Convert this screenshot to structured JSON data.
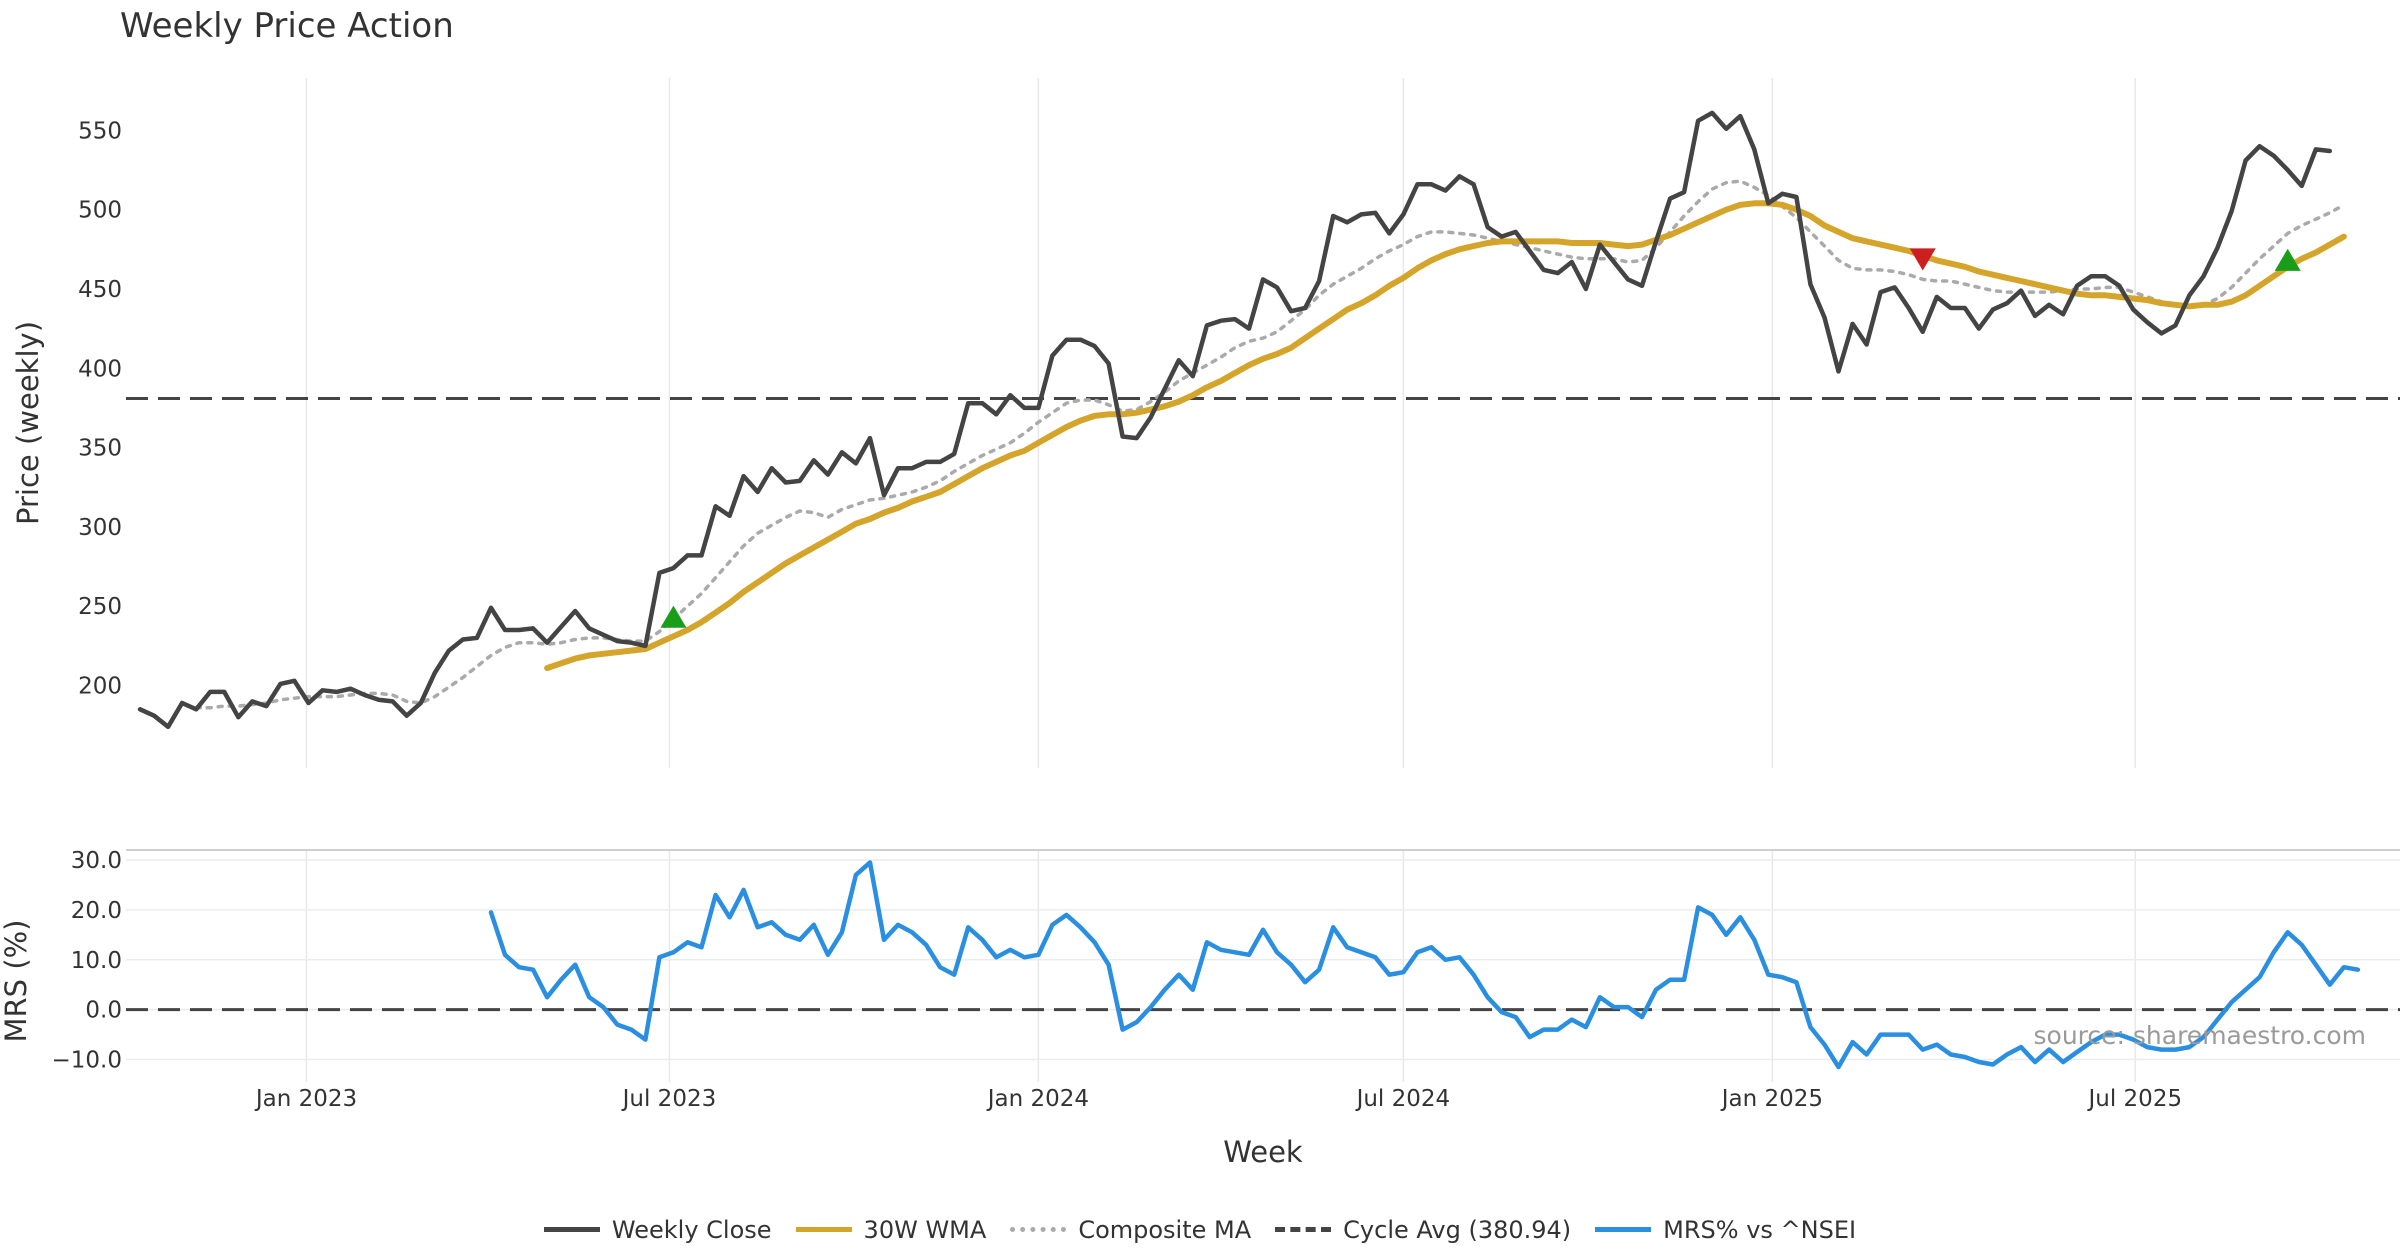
{
  "chart_data": [
    {
      "type": "line",
      "title": "Weekly Price Action",
      "ylabel": "Price (weekly)",
      "ylim": [
        148,
        583
      ],
      "yticks": [
        200,
        250,
        300,
        350,
        400,
        450,
        500,
        550
      ],
      "xlim": [
        "2022-10-03",
        "2025-11-10"
      ],
      "x_start": "2022-10-10",
      "series": [
        {
          "name": "Weekly Close",
          "color": "#444444",
          "style": "solid",
          "values": [
            185,
            181,
            174,
            189,
            185,
            196,
            196,
            180,
            190,
            187,
            201,
            203,
            189,
            197,
            196,
            198,
            194,
            191,
            190,
            181,
            189,
            208,
            222,
            229,
            230,
            249,
            235,
            235,
            236,
            227,
            237,
            247,
            236,
            232,
            228,
            227,
            225,
            271,
            274,
            282,
            282,
            313,
            307,
            332,
            322,
            337,
            328,
            329,
            342,
            333,
            347,
            340,
            356,
            320,
            337,
            337,
            341,
            341,
            346,
            378,
            378,
            371,
            383,
            375,
            375,
            408,
            418,
            418,
            414,
            403,
            357,
            356,
            369,
            387,
            405,
            395,
            427,
            430,
            431,
            425,
            456,
            451,
            436,
            438,
            455,
            496,
            492,
            497,
            498,
            485,
            497,
            516,
            516,
            512,
            521,
            516,
            489,
            483,
            486,
            474,
            462,
            460,
            467,
            450,
            478,
            467,
            456,
            452,
            480,
            507,
            511,
            556,
            561,
            551,
            559,
            538,
            504,
            510,
            508,
            453,
            432,
            398,
            428,
            415,
            448,
            451,
            438,
            423,
            445,
            438,
            438,
            425,
            437,
            441,
            449,
            433,
            440,
            434,
            452,
            458,
            458,
            452,
            437,
            429,
            422,
            427,
            446,
            458,
            476,
            499,
            531,
            540,
            534,
            525,
            515,
            538,
            537
          ]
        },
        {
          "name": "30W WMA",
          "color": "#d4a52a",
          "style": "solid",
          "values": [
            null,
            null,
            null,
            null,
            null,
            null,
            null,
            null,
            null,
            null,
            null,
            null,
            null,
            null,
            null,
            null,
            null,
            null,
            null,
            null,
            null,
            null,
            null,
            null,
            null,
            null,
            null,
            null,
            null,
            211,
            214,
            217,
            219,
            220,
            221,
            222,
            223,
            227,
            231,
            235,
            240,
            246,
            252,
            259,
            265,
            271,
            277,
            282,
            287,
            292,
            297,
            302,
            305,
            309,
            312,
            316,
            319,
            322,
            327,
            332,
            337,
            341,
            345,
            348,
            353,
            358,
            363,
            367,
            370,
            371,
            371,
            372,
            374,
            376,
            379,
            383,
            388,
            392,
            397,
            402,
            406,
            409,
            413,
            419,
            425,
            431,
            437,
            441,
            446,
            452,
            457,
            463,
            468,
            472,
            475,
            477,
            479,
            480,
            480,
            480,
            480,
            480,
            479,
            479,
            479,
            478,
            477,
            478,
            481,
            484,
            488,
            492,
            496,
            500,
            503,
            504,
            504,
            503,
            500,
            496,
            490,
            486,
            482,
            480,
            478,
            476,
            474,
            471,
            468,
            466,
            464,
            461,
            459,
            457,
            455,
            453,
            451,
            449,
            447,
            446,
            446,
            445,
            444,
            443,
            441,
            440,
            439,
            440,
            440,
            442,
            446,
            452,
            458,
            464,
            469,
            473,
            478,
            483
          ]
        },
        {
          "name": "Composite MA",
          "color": "#aaaaaa",
          "style": "dotted",
          "values": [
            null,
            null,
            null,
            null,
            186,
            186,
            187,
            187,
            188,
            189,
            191,
            192,
            193,
            193,
            193,
            194,
            195,
            195,
            194,
            190,
            189,
            193,
            199,
            205,
            212,
            219,
            224,
            227,
            227,
            226,
            227,
            229,
            230,
            230,
            229,
            228,
            228,
            234,
            242,
            250,
            258,
            268,
            278,
            288,
            296,
            301,
            306,
            310,
            309,
            306,
            311,
            314,
            317,
            318,
            320,
            322,
            325,
            329,
            335,
            340,
            345,
            349,
            353,
            359,
            366,
            372,
            378,
            380,
            380,
            377,
            373,
            374,
            379,
            385,
            392,
            397,
            402,
            407,
            413,
            417,
            419,
            423,
            430,
            437,
            446,
            453,
            458,
            463,
            469,
            474,
            478,
            483,
            486,
            486,
            485,
            484,
            482,
            480,
            478,
            476,
            474,
            472,
            470,
            469,
            469,
            469,
            467,
            468,
            476,
            486,
            496,
            505,
            513,
            517,
            518,
            514,
            509,
            502,
            495,
            486,
            477,
            468,
            463,
            462,
            462,
            461,
            459,
            456,
            455,
            455,
            453,
            451,
            449,
            448,
            448,
            448,
            448,
            449,
            450,
            450,
            451,
            451,
            448,
            445,
            442,
            440,
            439,
            440,
            444,
            451,
            460,
            469,
            477,
            485,
            490,
            494,
            498,
            503
          ]
        },
        {
          "name": "Cycle Avg (380.94)",
          "color": "#444444",
          "style": "dashed",
          "value": 380.94
        }
      ],
      "markers": [
        {
          "type": "buy",
          "week_index": 38,
          "value": 243,
          "color": "#1a9e1a"
        },
        {
          "type": "sell",
          "week_index": 127,
          "value": 469,
          "color": "#cc1f1f"
        },
        {
          "type": "buy",
          "week_index": 153,
          "value": 468,
          "color": "#1a9e1a"
        }
      ]
    },
    {
      "type": "line",
      "ylabel": "MRS (%)",
      "xlabel": "Week",
      "ylim": [
        -12.5,
        32
      ],
      "yticks": [
        -10.0,
        0.0,
        10.0,
        20.0,
        30.0
      ],
      "ytick_labels": [
        "−10.0",
        "0.0",
        "10.0",
        "20.0",
        "30.0"
      ],
      "xticks": [
        "2023-01-01",
        "2023-07-01",
        "2024-01-01",
        "2024-07-01",
        "2025-01-01",
        "2025-07-01"
      ],
      "xtick_labels": [
        "Jan 2023",
        "Jul 2023",
        "Jan 2024",
        "Jul 2024",
        "Jan 2025",
        "Jul 2025"
      ],
      "series": [
        {
          "name": "MRS% vs ^NSEI",
          "color": "#2a8fe0",
          "style": "solid",
          "start_index": 25,
          "values": [
            19.5,
            11.0,
            8.5,
            8.0,
            2.5,
            6.0,
            9.0,
            2.5,
            0.5,
            -3.0,
            -4.0,
            -6.0,
            10.5,
            11.5,
            13.5,
            12.5,
            23.0,
            18.5,
            24.0,
            16.5,
            17.5,
            15.0,
            14.0,
            17.0,
            11.0,
            15.5,
            27.0,
            29.5,
            14.0,
            17.0,
            15.5,
            13.0,
            8.5,
            7.0,
            16.5,
            14.0,
            10.5,
            12.0,
            10.5,
            11.0,
            17.0,
            19.0,
            16.5,
            13.5,
            9.0,
            -4.0,
            -2.5,
            0.5,
            4.0,
            7.0,
            4.0,
            13.5,
            12.0,
            11.5,
            11.0,
            16.0,
            11.5,
            9.0,
            5.5,
            8.0,
            16.5,
            12.5,
            11.5,
            10.5,
            7.0,
            7.5,
            11.5,
            12.5,
            10.0,
            10.5,
            7.0,
            2.5,
            -0.5,
            -1.5,
            -5.5,
            -4.0,
            -4.0,
            -2.0,
            -3.5,
            2.5,
            0.5,
            0.5,
            -1.5,
            4.0,
            6.0,
            6.0,
            20.5,
            19.0,
            15.0,
            18.5,
            14.0,
            7.0,
            6.5,
            5.5,
            -3.5,
            -7.0,
            -11.5,
            -6.5,
            -9.0,
            -5.0,
            -5.0,
            -5.0,
            -8.0,
            -7.0,
            -9.0,
            -9.5,
            -10.5,
            -11.0,
            -9.0,
            -7.5,
            -10.5,
            -8.0,
            -10.5,
            -8.5,
            -6.5,
            -5.0,
            -5.0,
            -6.0,
            -7.5,
            -8.0,
            -8.0,
            -7.5,
            -5.5,
            -2.0,
            1.5,
            4.0,
            6.5,
            11.5,
            15.5,
            13.0,
            9.0,
            5.0,
            8.5,
            8.0
          ]
        },
        {
          "name": "Zero line",
          "color": "#444444",
          "style": "dashed",
          "value": 0
        }
      ],
      "annotation": "source: sharemaestro.com"
    }
  ],
  "legend": [
    {
      "label": "Weekly Close",
      "color": "#444444",
      "style": "solid"
    },
    {
      "label": "30W WMA",
      "color": "#d4a52a",
      "style": "solid"
    },
    {
      "label": "Composite MA",
      "color": "#aaaaaa",
      "style": "dotted"
    },
    {
      "label": "Cycle Avg (380.94)",
      "color": "#444444",
      "style": "dashed"
    },
    {
      "label": "MRS% vs ^NSEI",
      "color": "#2a8fe0",
      "style": "solid"
    }
  ]
}
